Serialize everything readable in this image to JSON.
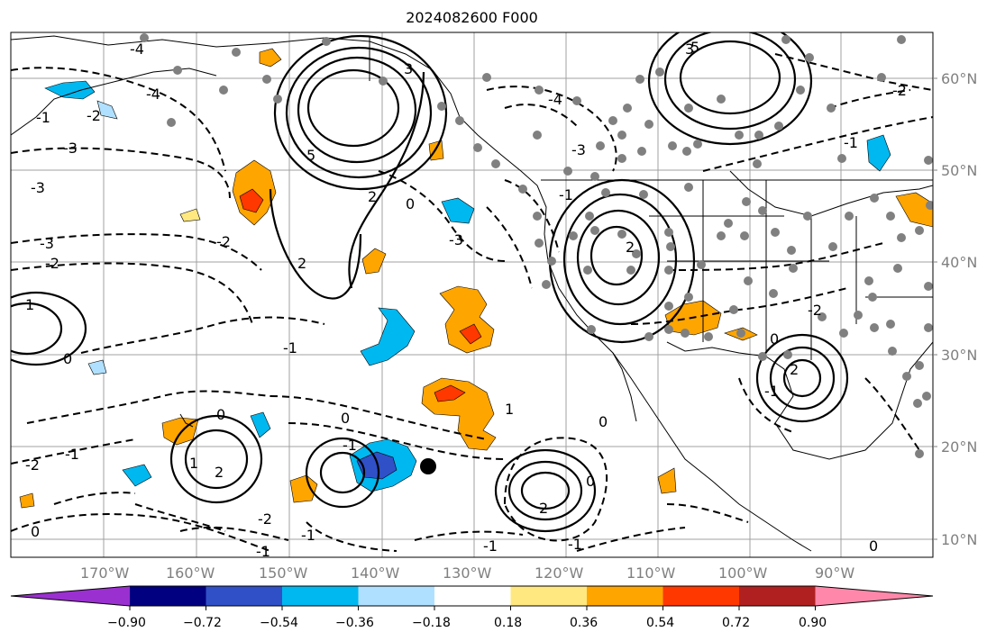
{
  "title": "2024082600 F000",
  "lat_labels": [
    "60°N",
    "50°N",
    "40°N",
    "30°N",
    "20°N",
    "10°N"
  ],
  "lon_labels": [
    "170°W",
    "160°W",
    "150°W",
    "140°W",
    "130°W",
    "120°W",
    "110°W",
    "100°W",
    "90°W"
  ],
  "colorbar": {
    "ticks": [
      "−0.90",
      "−0.72",
      "−0.54",
      "−0.36",
      "−0.18",
      "0.18",
      "0.36",
      "0.54",
      "0.72",
      "0.90"
    ],
    "colors": [
      "#9b30d0",
      "#000080",
      "#3050c8",
      "#00b8f0",
      "#b0e0ff",
      "#ffffff",
      "#ffe880",
      "#ffa500",
      "#ff3800",
      "#b02020",
      "#ff88aa"
    ]
  },
  "contour_labels": [
    "3",
    "-4",
    "-4",
    "5",
    "-4",
    "-3",
    "3",
    "-3",
    "-3",
    "-3",
    "-2",
    "-2",
    "2",
    "0",
    "-1",
    "-3",
    "-2",
    "-1",
    "1",
    "0",
    "0",
    "-1",
    "-2",
    "2",
    "0",
    "-1",
    "1",
    "-1",
    "-1",
    "-1",
    "0",
    "2",
    "0",
    "0",
    "-1",
    "-2",
    "-1",
    "-2",
    "0",
    "-1",
    "5",
    "2",
    "-1",
    "-2",
    "2",
    "0",
    "2",
    "1"
  ]
}
